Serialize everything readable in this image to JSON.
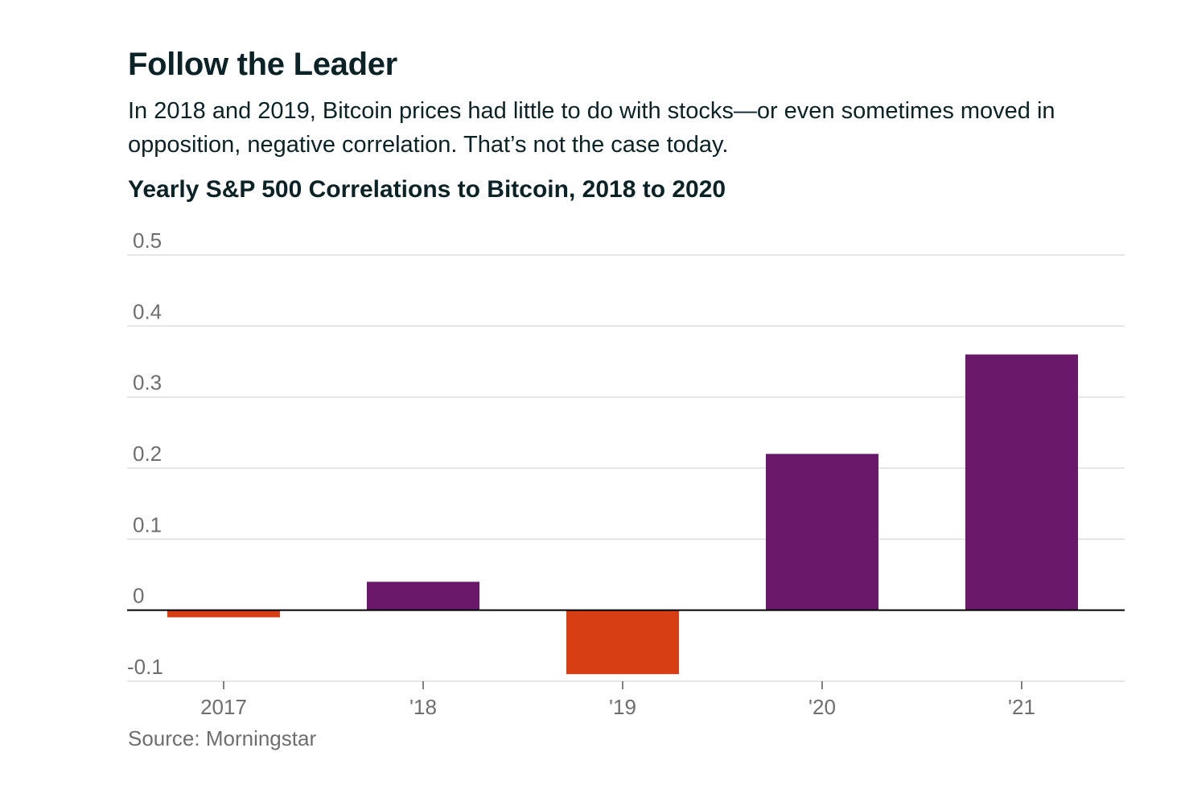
{
  "header": {
    "title": "Follow the Leader",
    "subtitle": "In 2018 and 2019, Bitcoin prices had little to do with stocks—or even sometimes moved in opposition, negative correlation. That’s not the case today."
  },
  "chart_data": {
    "type": "bar",
    "title": "Yearly S&P 500 Correlations to Bitcoin, 2018 to 2020",
    "categories": [
      "2017",
      "'18",
      "'19",
      "'20",
      "'21"
    ],
    "values": [
      -0.01,
      0.04,
      -0.09,
      0.22,
      0.36
    ],
    "ylim": [
      -0.1,
      0.5
    ],
    "yticks": [
      "0.5",
      "0.4",
      "0.3",
      "0.2",
      "0.1",
      "0",
      "-0.1"
    ],
    "ytick_values": [
      0.5,
      0.4,
      0.3,
      0.2,
      0.1,
      0,
      -0.1
    ],
    "grid": true,
    "colors": {
      "positive": "#6a1869",
      "negative": "#d83e14",
      "gridline": "#dddddd",
      "zero_line": "#000000"
    }
  },
  "footer": {
    "source": "Source: Morningstar"
  }
}
